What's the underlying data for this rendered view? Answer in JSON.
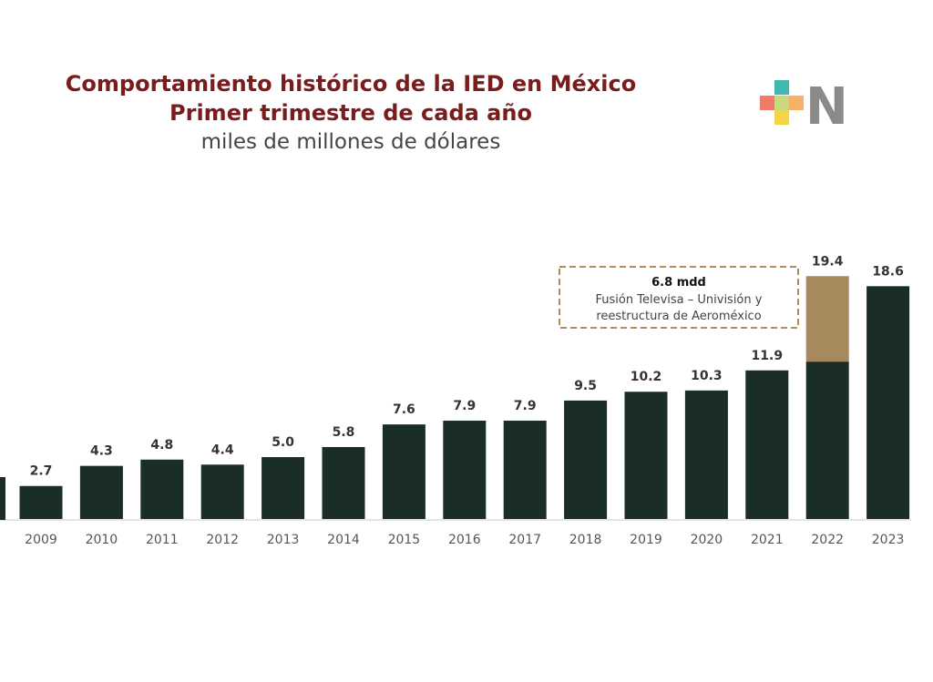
{
  "title": {
    "line1": "Comportamiento histórico de la IED en México",
    "line2": "Primer trimestre de cada año",
    "line3": "miles de millones de dólares"
  },
  "logo": {
    "icon": "plus-n-logo",
    "letter": "N"
  },
  "annotation": {
    "amount": "6.8 mdd",
    "line1": "Fusión Televisa – Univisión y",
    "line2": "reestructura de Aeroméxico"
  },
  "colors": {
    "bar": "#1b2e26",
    "highlight": "#a68a5e",
    "title": "#7a1c1c",
    "annotation_border": "#b48c5a"
  },
  "chart_data": {
    "type": "bar",
    "categories": [
      "2009",
      "2010",
      "2011",
      "2012",
      "2013",
      "2014",
      "2015",
      "2016",
      "2017",
      "2018",
      "2019",
      "2020",
      "2021",
      "2022",
      "2023"
    ],
    "values": [
      2.7,
      4.3,
      4.8,
      4.4,
      5.0,
      5.8,
      7.6,
      7.9,
      7.9,
      9.5,
      10.2,
      10.3,
      11.9,
      19.4,
      18.6
    ],
    "value_labels": [
      "2.7",
      "4.3",
      "4.8",
      "4.4",
      "5.0",
      "5.8",
      "7.6",
      "7.9",
      "7.9",
      "9.5",
      "10.2",
      "10.3",
      "11.9",
      "19.4",
      "18.6"
    ],
    "stacked_highlight": {
      "category": "2022",
      "value": 6.8
    },
    "title": "Comportamiento histórico de la IED en México",
    "xlabel": "",
    "ylabel": "",
    "ylim": [
      0,
      21
    ],
    "grid": false,
    "legend": "none"
  }
}
